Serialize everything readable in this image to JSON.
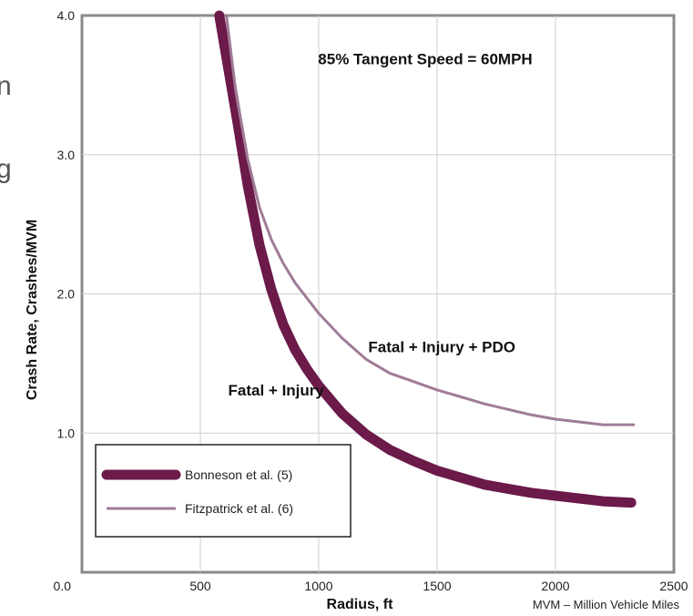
{
  "chart_data": {
    "type": "line",
    "title": "",
    "xlabel": "Radius, ft",
    "ylabel": "Crash Rate, Crashes/MVM",
    "xlim": [
      0,
      2500
    ],
    "ylim": [
      0.0,
      4.0
    ],
    "x_ticks": [
      {
        "value": 500,
        "label": "500"
      },
      {
        "value": 1000,
        "label": "1000"
      },
      {
        "value": 1500,
        "label": "1500"
      },
      {
        "value": 2000,
        "label": "2000"
      },
      {
        "value": 2500,
        "label": "2500"
      }
    ],
    "y_ticks": [
      {
        "value": 0.0,
        "label": "0.0"
      },
      {
        "value": 1.0,
        "label": "1.0"
      },
      {
        "value": 2.0,
        "label": "2.0"
      },
      {
        "value": 3.0,
        "label": "3.0"
      },
      {
        "value": 4.0,
        "label": "4.0"
      }
    ],
    "grid": true,
    "legend_position": "bottom-left",
    "series": [
      {
        "name": "Bonneson et al. (5)",
        "color": "#6b1a4a",
        "style": "thick",
        "x": [
          580,
          620,
          660,
          700,
          750,
          800,
          850,
          900,
          950,
          1000,
          1100,
          1200,
          1300,
          1400,
          1500,
          1600,
          1700,
          1800,
          1900,
          2000,
          2100,
          2200,
          2320
        ],
        "y": [
          4.0,
          3.6,
          3.2,
          2.78,
          2.35,
          2.03,
          1.78,
          1.6,
          1.46,
          1.34,
          1.14,
          0.99,
          0.88,
          0.8,
          0.73,
          0.68,
          0.63,
          0.6,
          0.57,
          0.55,
          0.53,
          0.51,
          0.5
        ]
      },
      {
        "name": "Fitzpatrick et al. (6)",
        "color": "#a07c97",
        "style": "thin",
        "x": [
          610,
          650,
          700,
          750,
          800,
          850,
          900,
          950,
          1000,
          1100,
          1200,
          1300,
          1400,
          1500,
          1600,
          1700,
          1800,
          1900,
          2000,
          2100,
          2200,
          2330
        ],
        "y": [
          4.0,
          3.45,
          2.97,
          2.62,
          2.39,
          2.22,
          2.08,
          1.97,
          1.86,
          1.68,
          1.53,
          1.43,
          1.37,
          1.31,
          1.26,
          1.21,
          1.17,
          1.13,
          1.1,
          1.08,
          1.06,
          1.06
        ]
      }
    ],
    "annotations": [
      {
        "text": "85% Tangent Speed = 60MPH",
        "x": 1450,
        "y": 3.65
      },
      {
        "text": "Fatal + Injury + PDO",
        "x": 1520,
        "y": 1.58
      },
      {
        "text": "Fatal + Injury",
        "x": 820,
        "y": 1.27
      }
    ],
    "footnote": "MVM – Million Vehicle Miles"
  }
}
